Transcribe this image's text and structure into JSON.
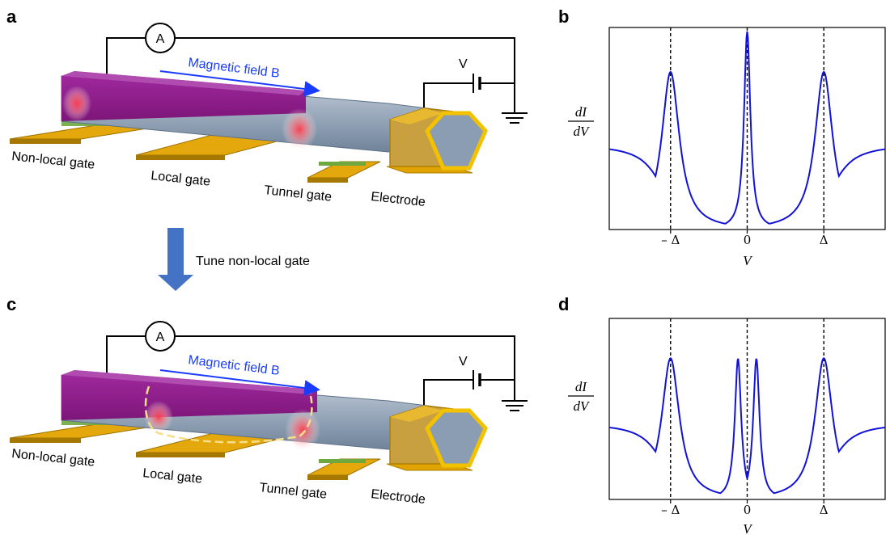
{
  "panels": [
    "a",
    "b",
    "c",
    "d"
  ],
  "device": {
    "ammeter": "A",
    "battery": "V",
    "field_label": "Magnetic field B",
    "gates": [
      "Non-local gate",
      "Local gate",
      "Tunnel gate",
      "Electrode"
    ]
  },
  "arrow_label": "Tune non-local gate",
  "colors": {
    "magenta": "#8e1e8c",
    "wire": "#8a9db3",
    "gold": "#e0a300",
    "green": "#6ea83f",
    "curve": "#1212d8",
    "arrow": "#4472c4"
  },
  "chart_data": [
    {
      "panel": "b",
      "type": "line",
      "ylabel_num": "dI",
      "ylabel_den": "dV",
      "xlabel": "V",
      "x_ticks": [
        "– Δ",
        "0",
        "Δ"
      ],
      "x_tick_values": [
        -1,
        0,
        1
      ],
      "xlim": [
        -1.8,
        1.8
      ],
      "ylim": [
        0,
        1
      ],
      "vlines": [
        -1,
        0,
        1
      ],
      "peaks": [
        {
          "x": -1,
          "height": 0.78,
          "width": 0.14
        },
        {
          "x": 0,
          "height": 0.98,
          "width": 0.05
        },
        {
          "x": 1,
          "height": 0.78,
          "width": 0.14
        }
      ],
      "background": 0.42
    },
    {
      "panel": "d",
      "type": "line",
      "ylabel_num": "dI",
      "ylabel_den": "dV",
      "xlabel": "V",
      "x_ticks": [
        "– Δ",
        "0",
        "Δ"
      ],
      "x_tick_values": [
        -1,
        0,
        1
      ],
      "xlim": [
        -1.8,
        1.8
      ],
      "ylim": [
        0,
        1
      ],
      "vlines": [
        -1,
        0,
        1
      ],
      "peaks": [
        {
          "x": -1,
          "height": 0.78,
          "width": 0.14
        },
        {
          "x": -0.12,
          "height": 0.78,
          "width": 0.05
        },
        {
          "x": 0.12,
          "height": 0.78,
          "width": 0.05
        },
        {
          "x": 1,
          "height": 0.78,
          "width": 0.14
        }
      ],
      "background": 0.42
    }
  ]
}
